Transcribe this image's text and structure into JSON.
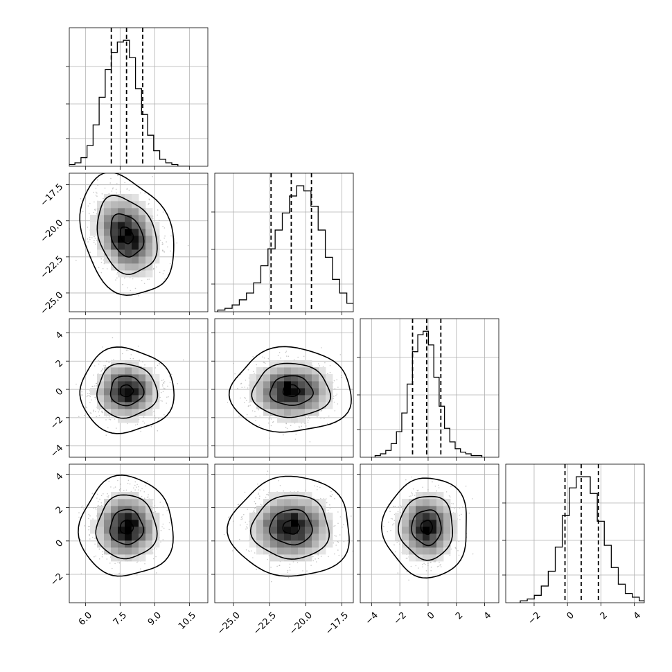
{
  "chart_data": {
    "type": "corner",
    "title": "",
    "parameters": [
      {
        "index": 0,
        "range": [
          5.3,
          11.3
        ],
        "ticks": [
          6.0,
          7.5,
          9.0,
          10.5
        ],
        "tick_labels": [
          "6.0",
          "7.5",
          "9.0",
          "10.5"
        ],
        "quantiles": [
          7.12,
          7.78,
          8.48
        ],
        "hist_counts": [
          1,
          2,
          5,
          12,
          24,
          40,
          56,
          66,
          72,
          73,
          63,
          45,
          30,
          18,
          9,
          4,
          2,
          1,
          0,
          0
        ]
      },
      {
        "index": 1,
        "range": [
          -26.3,
          -16.7
        ],
        "ticks": [
          -25.0,
          -22.5,
          -20.0,
          -17.5
        ],
        "tick_labels": [
          "−25.0",
          "−22.5",
          "−20.0",
          "−17.5"
        ],
        "quantiles": [
          -22.4,
          -21.0,
          -19.6
        ],
        "hist_counts": [
          1,
          2,
          4,
          7,
          11,
          17,
          27,
          37,
          48,
          58,
          68,
          74,
          71,
          62,
          48,
          32,
          19,
          11,
          5,
          3,
          1
        ]
      },
      {
        "index": 2,
        "range": [
          -4.8,
          5.0
        ],
        "ticks": [
          -4,
          -2,
          0,
          2,
          4
        ],
        "tick_labels": [
          "−4",
          "−2",
          "0",
          "2",
          "4"
        ],
        "quantiles": [
          -1.1,
          -0.1,
          0.9
        ],
        "hist_counts": [
          1,
          2,
          4,
          8,
          15,
          26,
          43,
          62,
          72,
          74,
          66,
          47,
          30,
          17,
          9,
          5,
          3,
          2,
          1,
          1
        ]
      },
      {
        "index": 3,
        "range": [
          -3.7,
          4.6
        ],
        "ticks": [
          -2,
          0,
          2,
          4
        ],
        "tick_labels": [
          "−2",
          "0",
          "2",
          "4"
        ],
        "quantiles": [
          -0.15,
          0.82,
          1.85
        ],
        "hist_counts": [
          1,
          2,
          4,
          9,
          17,
          30,
          47,
          62,
          68,
          68,
          59,
          44,
          31,
          19,
          10,
          5,
          3,
          1
        ]
      }
    ],
    "correlations": {
      "0-1": -0.25,
      "0-2": 0.0,
      "0-3": 0.0,
      "1-2": 0.0,
      "1-3": 0.0,
      "2-3": 0.0
    },
    "contour_levels_sigma": [
      0.5,
      1.0,
      1.5,
      2.0
    ],
    "xlabel": "",
    "ylabel": "",
    "grid": true,
    "legend": "none",
    "colors": {
      "line": "#000000",
      "points": "#9a9a9a",
      "grid": "#b0b0b0"
    }
  }
}
